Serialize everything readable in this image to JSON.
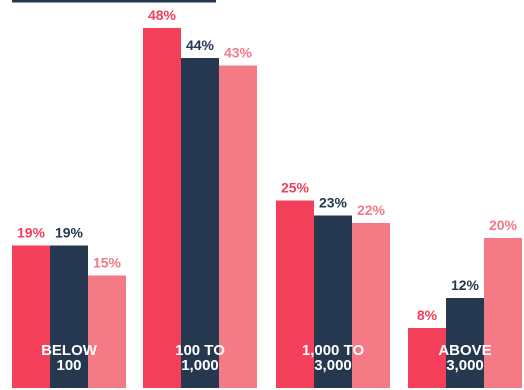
{
  "chart_data": {
    "type": "bar",
    "categories": [
      [
        "BELOW",
        "100"
      ],
      [
        "100 TO",
        "1,000"
      ],
      [
        "1,000 TO",
        "3,000"
      ],
      [
        "ABOVE",
        "3,000"
      ]
    ],
    "series": [
      {
        "values": [
          19,
          48,
          25,
          8
        ],
        "color": "#f43f5a",
        "labels": [
          "19%",
          "48%",
          "25%",
          "8%"
        ]
      },
      {
        "values": [
          19,
          44,
          23,
          12
        ],
        "color": "#263850",
        "labels": [
          "19%",
          "44%",
          "23%",
          "12%"
        ]
      },
      {
        "values": [
          15,
          43,
          22,
          20
        ],
        "color": "#f47a85",
        "labels": [
          "15%",
          "43%",
          "22%",
          "20%"
        ]
      }
    ],
    "ylim": [
      0,
      50
    ],
    "grid": false,
    "legend": "none"
  }
}
